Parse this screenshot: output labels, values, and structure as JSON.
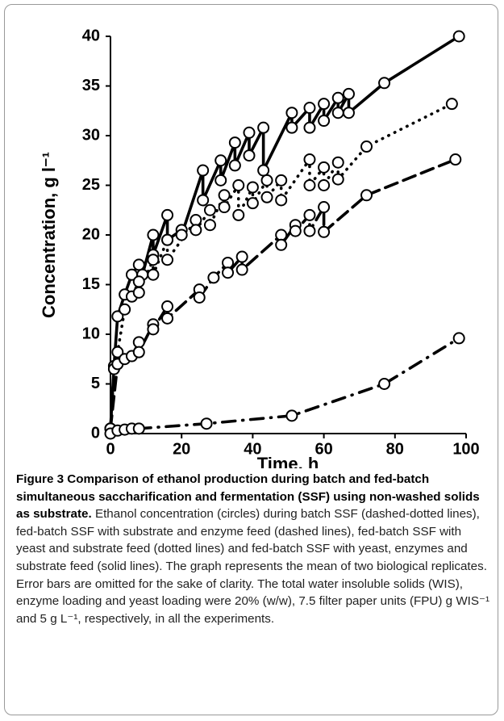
{
  "chart_data": {
    "type": "line",
    "ylabel": "Concentration, g l⁻¹",
    "xlabel": "Time, h",
    "xlim": [
      0,
      100
    ],
    "xticks": [
      0,
      20,
      40,
      60,
      80,
      100
    ],
    "ylim": [
      0,
      40
    ],
    "yticks": [
      0,
      5,
      10,
      15,
      20,
      25,
      30,
      35,
      40
    ],
    "series": [
      {
        "color": "#000000",
        "dash": "solid",
        "x": [
          0,
          1,
          2,
          4,
          6,
          8,
          9,
          12,
          12,
          16,
          16,
          20,
          20,
          26,
          26,
          31,
          31,
          35,
          35,
          39,
          39,
          43,
          43,
          51,
          51,
          56,
          56,
          60,
          60,
          64,
          64,
          67,
          67,
          77,
          98
        ],
        "values": [
          0.5,
          6.8,
          11.8,
          14,
          16,
          17,
          16,
          20,
          18,
          22,
          19.5,
          20.5,
          20,
          26.5,
          23.5,
          27.5,
          25.5,
          29.3,
          27,
          30.3,
          28,
          30.8,
          26.5,
          32.3,
          30.8,
          32.8,
          30.8,
          33.2,
          31.5,
          33.8,
          32.3,
          34.2,
          32.3,
          35.3,
          40
        ]
      },
      {
        "color": "#000000",
        "dash": "dotted",
        "x": [
          0,
          1,
          2,
          4,
          6,
          8,
          8,
          12,
          12,
          16,
          16,
          24,
          24,
          28,
          28,
          32,
          32,
          36,
          36,
          40,
          40,
          44,
          44,
          48,
          48,
          56,
          56,
          60,
          60,
          64,
          64,
          72,
          96
        ],
        "values": [
          0.5,
          6.5,
          8.2,
          12.5,
          13.8,
          15.3,
          14.2,
          17.5,
          16,
          19.5,
          17.5,
          21.5,
          20.5,
          22.5,
          21,
          24,
          22.8,
          25,
          22,
          24.8,
          23.2,
          25.5,
          23.8,
          25.5,
          23.5,
          27.6,
          25,
          26.8,
          25,
          27.3,
          25.6,
          28.9,
          33.2
        ]
      },
      {
        "color": "#000000",
        "dash": "dashed",
        "x": [
          0,
          2,
          4,
          6,
          8,
          8,
          12,
          12,
          16,
          16,
          25,
          25,
          29,
          33,
          33,
          37,
          37,
          48,
          48,
          52,
          52,
          56,
          56,
          60,
          60,
          72,
          97
        ],
        "values": [
          0.5,
          7,
          7.5,
          7.8,
          9.2,
          8.2,
          11,
          10.5,
          12.8,
          11.6,
          14.5,
          13.7,
          15.7,
          17.2,
          16.2,
          17.8,
          16.5,
          20,
          19,
          21,
          20.4,
          22,
          20.4,
          22.8,
          20.3,
          24,
          27.6
        ]
      },
      {
        "color": "#000000",
        "dash": "dashdot",
        "x": [
          0,
          2,
          4,
          6,
          8,
          27,
          51,
          77,
          98
        ],
        "values": [
          0,
          0.3,
          0.4,
          0.5,
          0.5,
          1,
          1.8,
          5,
          9.6
        ]
      }
    ]
  },
  "caption": {
    "title": "Figure 3 Comparison of ethanol production during batch and fed-batch simultaneous saccharification and fermentation (SSF) using non-washed solids as substrate.",
    "text": "Ethanol concentration (circles) during batch SSF (dashed-dotted lines), fed-batch SSF with substrate and enzyme feed (dashed lines), fed-batch SSF with yeast and substrate feed (dotted lines) and fed-batch SSF with yeast, enzymes and substrate feed (solid lines). The graph represents the mean of two biological replicates. Error bars are omitted for the sake of clarity. The total water insoluble solids (WIS), enzyme loading and yeast loading were 20% (w/w), 7.5 filter paper units (FPU) g WIS⁻¹ and 5 g L⁻¹, respectively, in all the experiments."
  }
}
